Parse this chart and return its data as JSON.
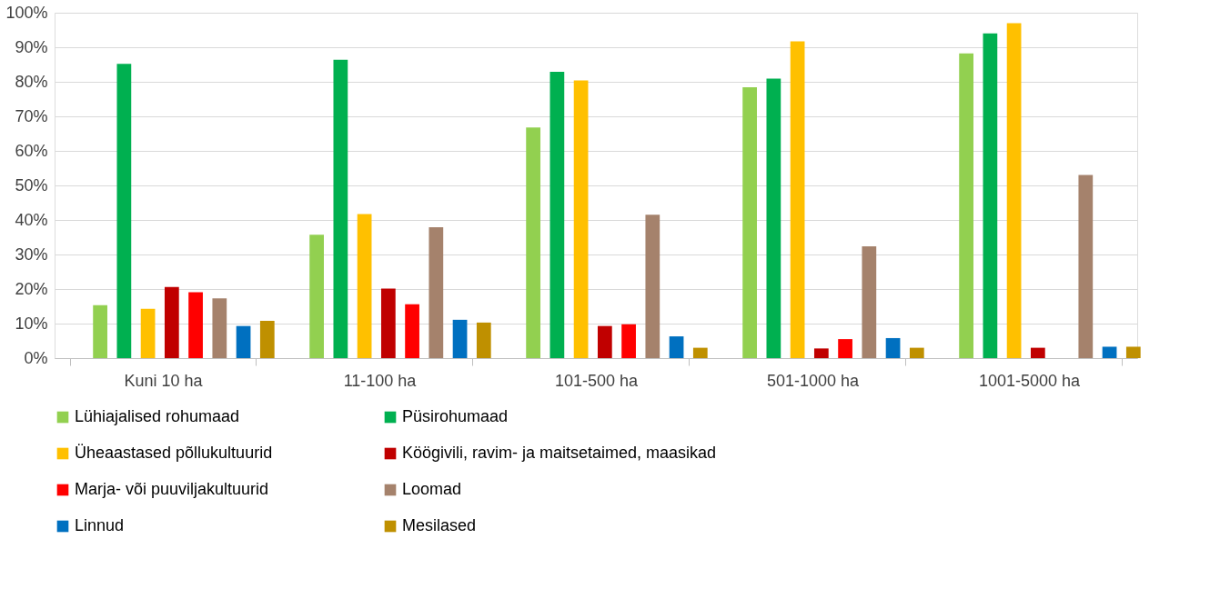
{
  "chart_data": {
    "type": "bar",
    "categories": [
      "Kuni 10 ha",
      "11-100 ha",
      "101-500 ha",
      "501-1000 ha",
      "1001-5000 ha"
    ],
    "series": [
      {
        "name": "Lühiajalised rohumaad",
        "color": "#92d050",
        "values": [
          15.3,
          35.7,
          66.8,
          78.4,
          88.2
        ]
      },
      {
        "name": "Püsirohumaad",
        "color": "#00b050",
        "values": [
          85.2,
          86.4,
          82.9,
          80.9,
          94.0
        ]
      },
      {
        "name": "Üheaastased põllukultuurid",
        "color": "#ffc000",
        "values": [
          14.3,
          41.7,
          80.4,
          91.7,
          97.0
        ]
      },
      {
        "name": "Köögivili, ravim- ja maitsetaimed, maasikad",
        "color": "#c00000",
        "values": [
          20.6,
          20.1,
          9.3,
          2.8,
          3.0
        ]
      },
      {
        "name": "Marja- või puuviljakultuurid",
        "color": "#ff0000",
        "values": [
          19.1,
          15.6,
          9.8,
          5.5,
          0
        ]
      },
      {
        "name": "Loomad",
        "color": "#a5826c",
        "values": [
          17.3,
          37.9,
          41.5,
          32.4,
          53.0
        ]
      },
      {
        "name": "Linnud",
        "color": "#0070c0",
        "values": [
          9.3,
          11.1,
          6.3,
          5.8,
          3.3
        ]
      },
      {
        "name": "Mesilased",
        "color": "#bf9000",
        "values": [
          10.8,
          10.3,
          3.0,
          3.0,
          3.3
        ]
      }
    ],
    "ylim": [
      0,
      100
    ],
    "yticks": [
      {
        "value": 0,
        "label": "0%"
      },
      {
        "value": 10,
        "label": "10%"
      },
      {
        "value": 20,
        "label": "20%"
      },
      {
        "value": 30,
        "label": "30%"
      },
      {
        "value": 40,
        "label": "40%"
      },
      {
        "value": 50,
        "label": "50%"
      },
      {
        "value": 60,
        "label": "60%"
      },
      {
        "value": 70,
        "label": "70%"
      },
      {
        "value": 80,
        "label": "80%"
      },
      {
        "value": 90,
        "label": "90%"
      },
      {
        "value": 100,
        "label": "100%"
      }
    ],
    "grid": "y",
    "legend": "bottom"
  }
}
